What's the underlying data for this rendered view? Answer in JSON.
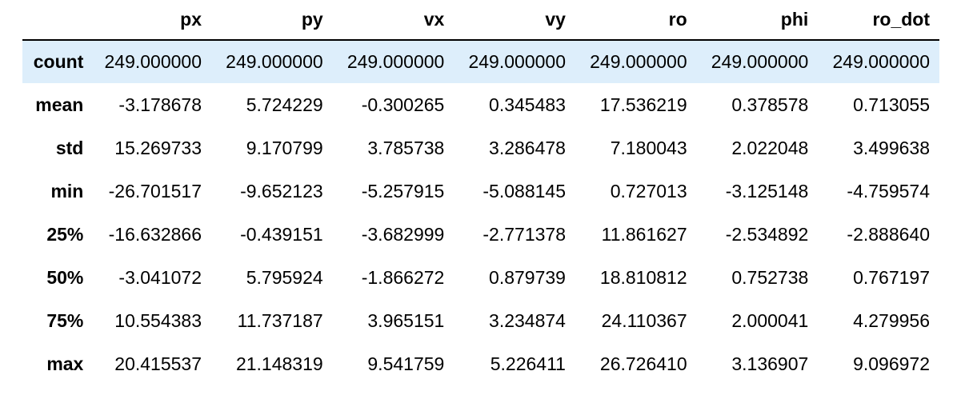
{
  "table": {
    "index_header": "",
    "columns": [
      "px",
      "py",
      "vx",
      "vy",
      "ro",
      "phi",
      "ro_dot"
    ],
    "rows": [
      {
        "label": "count",
        "values": [
          "249.000000",
          "249.000000",
          "249.000000",
          "249.000000",
          "249.000000",
          "249.000000",
          "249.000000"
        ]
      },
      {
        "label": "mean",
        "values": [
          "-3.178678",
          "5.724229",
          "-0.300265",
          "0.345483",
          "17.536219",
          "0.378578",
          "0.713055"
        ]
      },
      {
        "label": "std",
        "values": [
          "15.269733",
          "9.170799",
          "3.785738",
          "3.286478",
          "7.180043",
          "2.022048",
          "3.499638"
        ]
      },
      {
        "label": "min",
        "values": [
          "-26.701517",
          "-9.652123",
          "-5.257915",
          "-5.088145",
          "0.727013",
          "-3.125148",
          "-4.759574"
        ]
      },
      {
        "label": "25%",
        "values": [
          "-16.632866",
          "-0.439151",
          "-3.682999",
          "-2.771378",
          "11.861627",
          "-2.534892",
          "-2.888640"
        ]
      },
      {
        "label": "50%",
        "values": [
          "-3.041072",
          "5.795924",
          "-1.866272",
          "0.879739",
          "18.810812",
          "0.752738",
          "0.767197"
        ]
      },
      {
        "label": "75%",
        "values": [
          "10.554383",
          "11.737187",
          "3.965151",
          "3.234874",
          "24.110367",
          "2.000041",
          "4.279956"
        ]
      },
      {
        "label": "max",
        "values": [
          "20.415537",
          "21.148319",
          "9.541759",
          "5.226411",
          "26.726410",
          "3.136907",
          "9.096972"
        ]
      }
    ],
    "highlight_color": "#ddeefb"
  }
}
